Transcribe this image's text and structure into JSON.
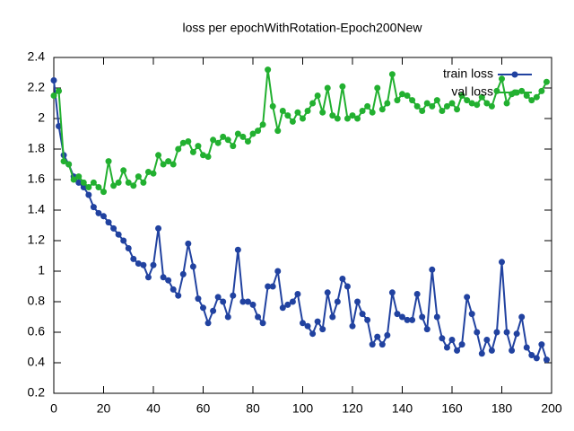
{
  "chart_data": {
    "type": "line",
    "title": "loss per epochWithRotation-Epoch200New",
    "x": [
      0,
      2,
      4,
      6,
      8,
      10,
      12,
      14,
      16,
      18,
      20,
      22,
      24,
      26,
      28,
      30,
      32,
      34,
      36,
      38,
      40,
      42,
      44,
      46,
      48,
      50,
      52,
      54,
      56,
      58,
      60,
      62,
      64,
      66,
      68,
      70,
      72,
      74,
      76,
      78,
      80,
      82,
      84,
      86,
      88,
      90,
      92,
      94,
      96,
      98,
      100,
      102,
      104,
      106,
      108,
      110,
      112,
      114,
      116,
      118,
      120,
      122,
      124,
      126,
      128,
      130,
      132,
      134,
      136,
      138,
      140,
      142,
      144,
      146,
      148,
      150,
      152,
      154,
      156,
      158,
      160,
      162,
      164,
      166,
      168,
      170,
      172,
      174,
      176,
      178,
      180,
      182,
      184,
      186,
      188,
      190,
      192,
      194,
      196,
      198
    ],
    "series": [
      {
        "name": "train loss",
        "color": "#2142a0",
        "values": [
          2.25,
          1.95,
          1.76,
          1.7,
          1.62,
          1.58,
          1.55,
          1.5,
          1.42,
          1.38,
          1.36,
          1.32,
          1.28,
          1.24,
          1.2,
          1.15,
          1.08,
          1.05,
          1.04,
          0.96,
          1.04,
          1.28,
          0.96,
          0.94,
          0.88,
          0.84,
          0.98,
          1.18,
          1.03,
          0.82,
          0.76,
          0.66,
          0.74,
          0.83,
          0.8,
          0.7,
          0.84,
          1.14,
          0.8,
          0.8,
          0.78,
          0.7,
          0.66,
          0.9,
          0.9,
          1.0,
          0.76,
          0.78,
          0.8,
          0.85,
          0.66,
          0.64,
          0.59,
          0.67,
          0.62,
          0.86,
          0.7,
          0.8,
          0.95,
          0.9,
          0.64,
          0.8,
          0.72,
          0.68,
          0.52,
          0.57,
          0.52,
          0.58,
          0.86,
          0.72,
          0.7,
          0.68,
          0.68,
          0.85,
          0.7,
          0.62,
          1.01,
          0.7,
          0.56,
          0.5,
          0.55,
          0.48,
          0.52,
          0.83,
          0.72,
          0.6,
          0.46,
          0.55,
          0.48,
          0.6,
          1.06,
          0.6,
          0.48,
          0.59,
          0.7,
          0.5,
          0.45,
          0.43,
          0.52,
          0.42
        ]
      },
      {
        "name": "val loss",
        "color": "#22b030",
        "values": [
          2.15,
          2.18,
          1.72,
          1.7,
          1.6,
          1.62,
          1.58,
          1.55,
          1.58,
          1.55,
          1.52,
          1.72,
          1.56,
          1.58,
          1.66,
          1.58,
          1.56,
          1.62,
          1.58,
          1.65,
          1.64,
          1.76,
          1.7,
          1.72,
          1.7,
          1.8,
          1.84,
          1.85,
          1.78,
          1.82,
          1.76,
          1.75,
          1.86,
          1.84,
          1.88,
          1.86,
          1.82,
          1.9,
          1.88,
          1.85,
          1.9,
          1.92,
          1.96,
          2.32,
          2.08,
          1.92,
          2.05,
          2.02,
          1.98,
          2.04,
          2.0,
          2.05,
          2.1,
          2.15,
          2.04,
          2.2,
          2.02,
          2.0,
          2.21,
          2.0,
          2.02,
          2.0,
          2.05,
          2.08,
          2.04,
          2.2,
          2.06,
          2.1,
          2.29,
          2.12,
          2.16,
          2.15,
          2.12,
          2.08,
          2.05,
          2.1,
          2.08,
          2.12,
          2.05,
          2.08,
          2.1,
          2.06,
          2.15,
          2.12,
          2.1,
          2.09,
          2.14,
          2.1,
          2.08,
          2.18,
          2.26,
          2.1,
          2.16,
          2.17,
          2.18,
          2.15,
          2.12,
          2.14,
          2.18,
          2.24
        ]
      }
    ],
    "xlim": [
      0,
      200
    ],
    "xticks": [
      0,
      20,
      40,
      60,
      80,
      100,
      120,
      140,
      160,
      180,
      200
    ],
    "ylim": [
      0.2,
      2.4
    ],
    "yticks": [
      0.2,
      0.4,
      0.6,
      0.8,
      1,
      1.2,
      1.4,
      1.6,
      1.8,
      2,
      2.2,
      2.4
    ],
    "legend": "top-right"
  }
}
